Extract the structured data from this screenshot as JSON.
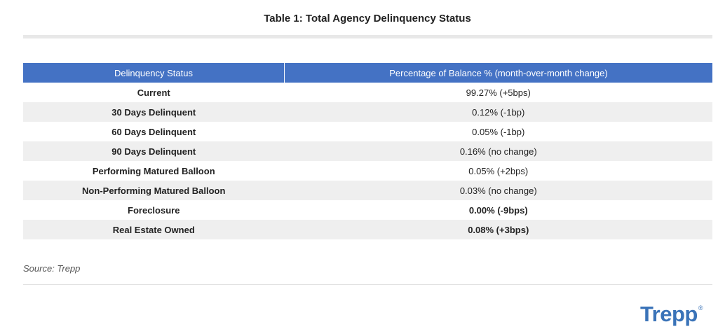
{
  "title": "Table 1: Total Agency Delinquency Status",
  "table": {
    "headers": [
      "Delinquency Status",
      "Percentage of Balance % (month-over-month change)"
    ],
    "rows": [
      {
        "status": "Current",
        "value": "99.27% (+5bps)",
        "bold_value": false
      },
      {
        "status": "30 Days Delinquent",
        "value": "0.12% (-1bp)",
        "bold_value": false
      },
      {
        "status": "60 Days Delinquent",
        "value": "0.05% (-1bp)",
        "bold_value": false
      },
      {
        "status": "90 Days Delinquent",
        "value": "0.16% (no change)",
        "bold_value": false
      },
      {
        "status": "Performing Matured Balloon",
        "value": "0.05% (+2bps)",
        "bold_value": false
      },
      {
        "status": "Non-Performing Matured Balloon",
        "value": "0.03% (no change)",
        "bold_value": false
      },
      {
        "status": "Foreclosure",
        "value": "0.00% (-9bps)",
        "bold_value": true
      },
      {
        "status": "Real Estate Owned",
        "value": "0.08% (+3bps)",
        "bold_value": true
      }
    ]
  },
  "source": "Source: Trepp",
  "logo": {
    "text": "Trepp",
    "mark": "®"
  },
  "colors": {
    "header_bg": "#4472c4",
    "alt_row": "#efefef",
    "logo": "#3a73b8"
  }
}
